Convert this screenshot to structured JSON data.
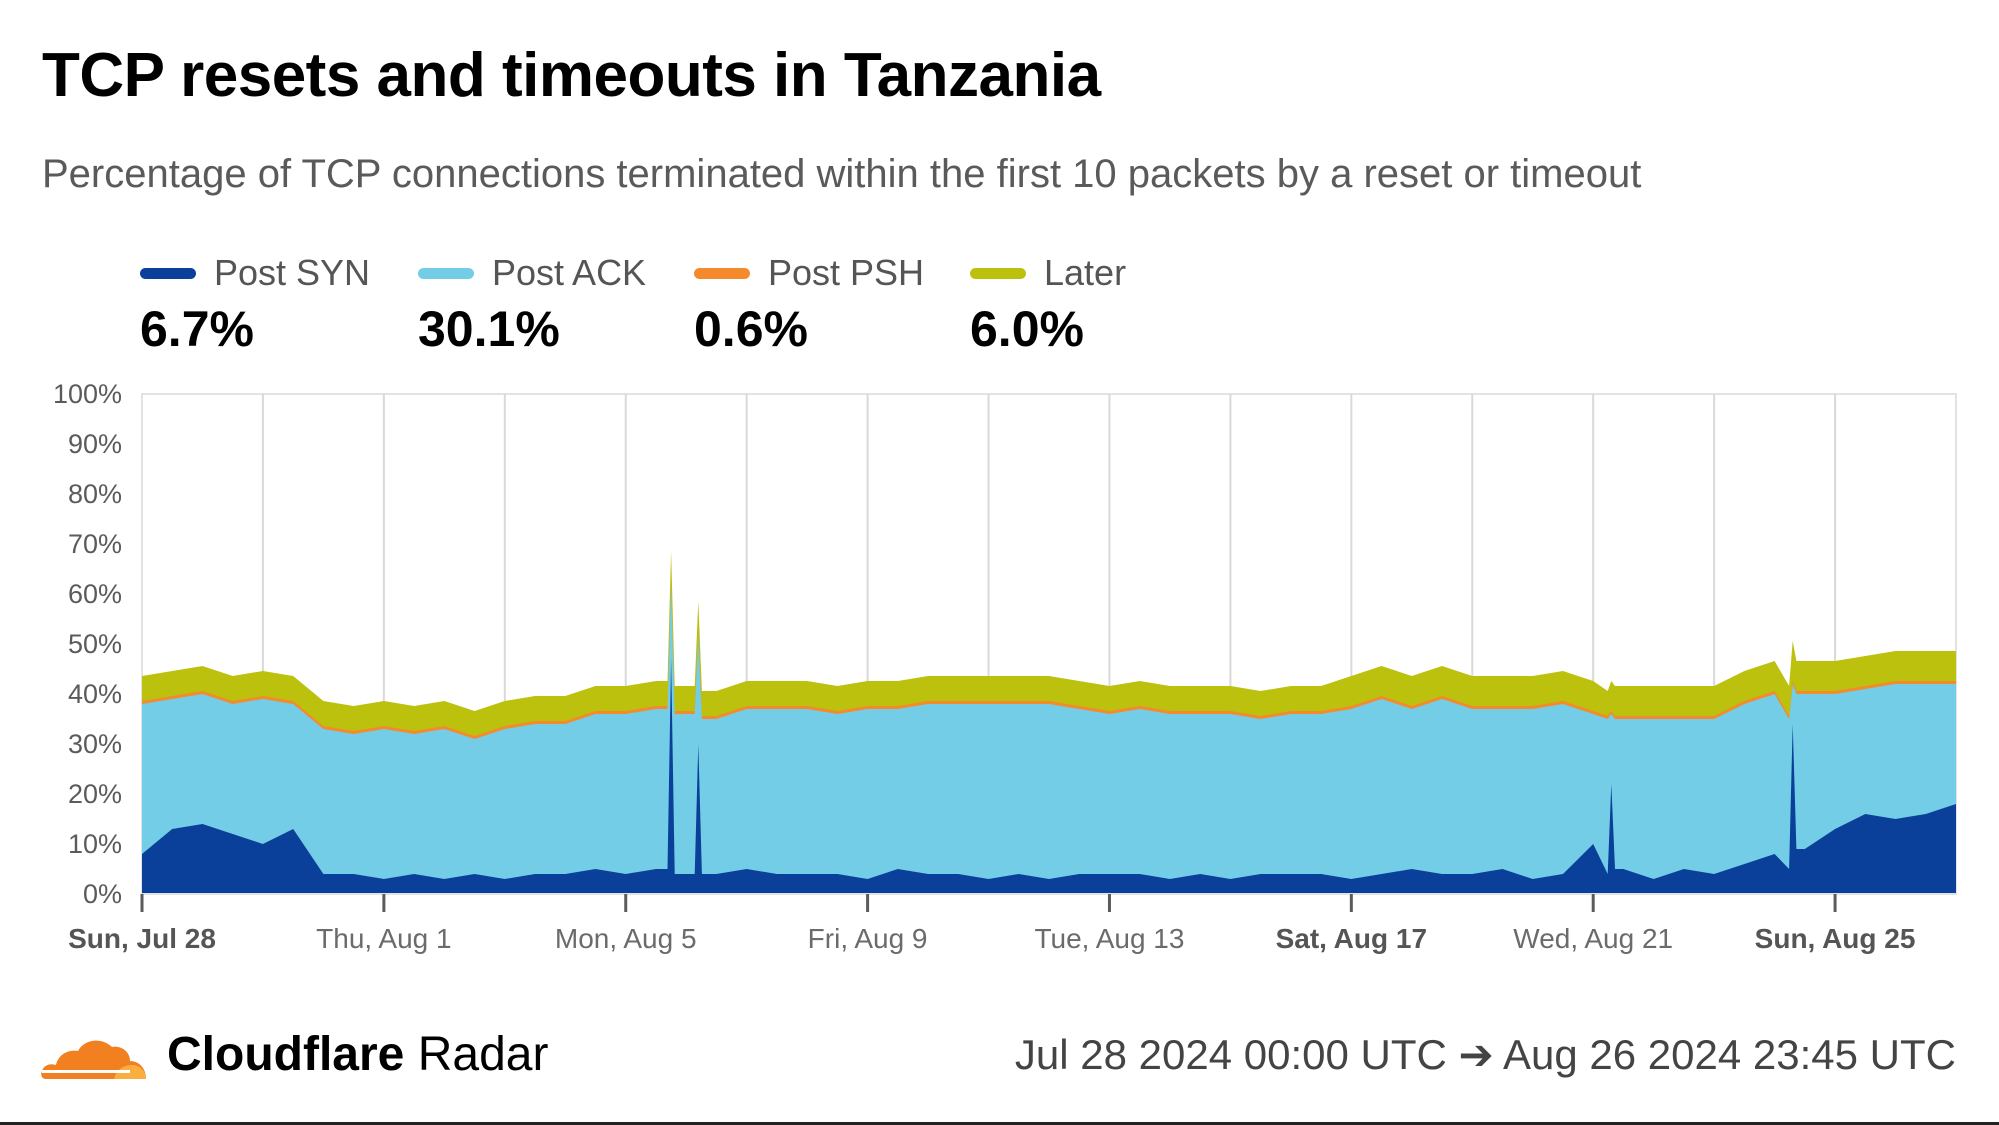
{
  "chart_data": {
    "type": "area",
    "stacked": true,
    "title": "TCP resets and timeouts in Tanzania",
    "subtitle": "Percentage of TCP connections terminated within the first 10 packets by a reset or timeout",
    "ylim": [
      0,
      100
    ],
    "y_ticks": [
      "0%",
      "10%",
      "20%",
      "30%",
      "40%",
      "50%",
      "60%",
      "70%",
      "80%",
      "90%",
      "100%"
    ],
    "x_range_days": [
      0,
      30
    ],
    "x_ticks": [
      {
        "day": 0,
        "label": "Sun, Jul 28",
        "bold": true
      },
      {
        "day": 4,
        "label": "Thu, Aug 1",
        "bold": false
      },
      {
        "day": 8,
        "label": "Mon, Aug 5",
        "bold": false
      },
      {
        "day": 12,
        "label": "Fri, Aug 9",
        "bold": false
      },
      {
        "day": 16,
        "label": "Tue, Aug 13",
        "bold": false
      },
      {
        "day": 20,
        "label": "Sat, Aug 17",
        "bold": true
      },
      {
        "day": 24,
        "label": "Wed, Aug 21",
        "bold": false
      },
      {
        "day": 28,
        "label": "Sun, Aug 25",
        "bold": true
      }
    ],
    "grid": true,
    "legend_position": "top-left",
    "series": [
      {
        "name": "Post SYN",
        "summary": "6.7%",
        "color": "#0a3f9a"
      },
      {
        "name": "Post ACK",
        "summary": "30.1%",
        "color": "#74cde6"
      },
      {
        "name": "Post PSH",
        "summary": "0.6%",
        "color": "#f48a2b"
      },
      {
        "name": "Later",
        "summary": "6.0%",
        "color": "#bcc10e"
      }
    ],
    "x_days": [
      0,
      0.5,
      1,
      1.5,
      2,
      2.5,
      3,
      3.5,
      4,
      4.5,
      5,
      5.5,
      6,
      6.5,
      7,
      7.5,
      8,
      8.5,
      9,
      9.5,
      10,
      10.5,
      11,
      11.5,
      12,
      12.5,
      13,
      13.5,
      14,
      14.5,
      15,
      15.5,
      16,
      16.5,
      17,
      17.5,
      18,
      18.5,
      19,
      19.5,
      20,
      20.5,
      21,
      21.5,
      22,
      22.5,
      23,
      23.5,
      24,
      24.5,
      25,
      25.5,
      26,
      26.5,
      27,
      27.5,
      28,
      28.5,
      29,
      29.5,
      30
    ],
    "values": {
      "Post SYN": [
        8,
        13,
        14,
        12,
        10,
        13,
        4,
        4,
        3,
        4,
        3,
        4,
        3,
        4,
        4,
        5,
        4,
        5,
        4,
        4,
        5,
        4,
        4,
        4,
        3,
        5,
        4,
        4,
        3,
        4,
        3,
        4,
        4,
        4,
        3,
        4,
        3,
        4,
        4,
        4,
        3,
        4,
        5,
        4,
        4,
        5,
        3,
        4,
        10,
        5,
        3,
        5,
        4,
        6,
        8,
        9,
        13,
        16,
        15,
        16,
        18
      ],
      "Post ACK": [
        30,
        26,
        26,
        26,
        29,
        25,
        29,
        28,
        30,
        28,
        30,
        27,
        30,
        30,
        30,
        31,
        32,
        32,
        32,
        31,
        32,
        33,
        33,
        32,
        34,
        32,
        34,
        34,
        35,
        34,
        35,
        33,
        32,
        33,
        33,
        32,
        33,
        31,
        32,
        32,
        34,
        35,
        32,
        35,
        33,
        32,
        34,
        34,
        26,
        30,
        32,
        30,
        31,
        32,
        32,
        31,
        27,
        25,
        27,
        26,
        24
      ],
      "Post PSH": [
        0.6,
        0.6,
        0.6,
        0.6,
        0.6,
        0.6,
        0.6,
        0.6,
        0.6,
        0.6,
        0.6,
        0.6,
        0.6,
        0.6,
        0.6,
        0.6,
        0.6,
        0.6,
        0.6,
        0.6,
        0.6,
        0.6,
        0.6,
        0.6,
        0.6,
        0.6,
        0.6,
        0.6,
        0.6,
        0.6,
        0.6,
        0.6,
        0.6,
        0.6,
        0.6,
        0.6,
        0.6,
        0.6,
        0.6,
        0.6,
        0.6,
        0.6,
        0.6,
        0.6,
        0.6,
        0.6,
        0.6,
        0.6,
        0.6,
        0.6,
        0.6,
        0.6,
        0.6,
        0.6,
        0.6,
        0.6,
        0.6,
        0.6,
        0.6,
        0.6,
        0.6
      ],
      "Later": [
        5,
        5,
        5,
        5,
        5,
        5,
        5,
        5,
        5,
        5,
        5,
        5,
        5,
        5,
        5,
        5,
        5,
        5,
        5,
        5,
        5,
        5,
        5,
        5,
        5,
        5,
        5,
        5,
        5,
        5,
        5,
        5,
        5,
        5,
        5,
        5,
        5,
        5,
        5,
        5,
        6,
        6,
        6,
        6,
        6,
        6,
        6,
        6,
        6,
        6,
        6,
        6,
        6,
        6,
        6,
        6,
        6,
        6,
        6,
        6,
        6
      ]
    },
    "spikes": [
      {
        "day": 8.75,
        "Post SYN": 47,
        "Post ACK": 15,
        "Later": 6
      },
      {
        "day": 9.2,
        "Post SYN": 30,
        "Post ACK": 22,
        "Later": 6
      },
      {
        "day": 24.3,
        "Post SYN": 22,
        "Post ACK": 14,
        "Later": 6
      },
      {
        "day": 27.3,
        "Post SYN": 34,
        "Post ACK": 8,
        "Later": 8
      }
    ]
  },
  "footer": {
    "brand_bold": "Cloudflare",
    "brand_light": "Radar",
    "time_range": "Jul 28 2024 00:00 UTC ➔ Aug 26 2024 23:45 UTC"
  }
}
